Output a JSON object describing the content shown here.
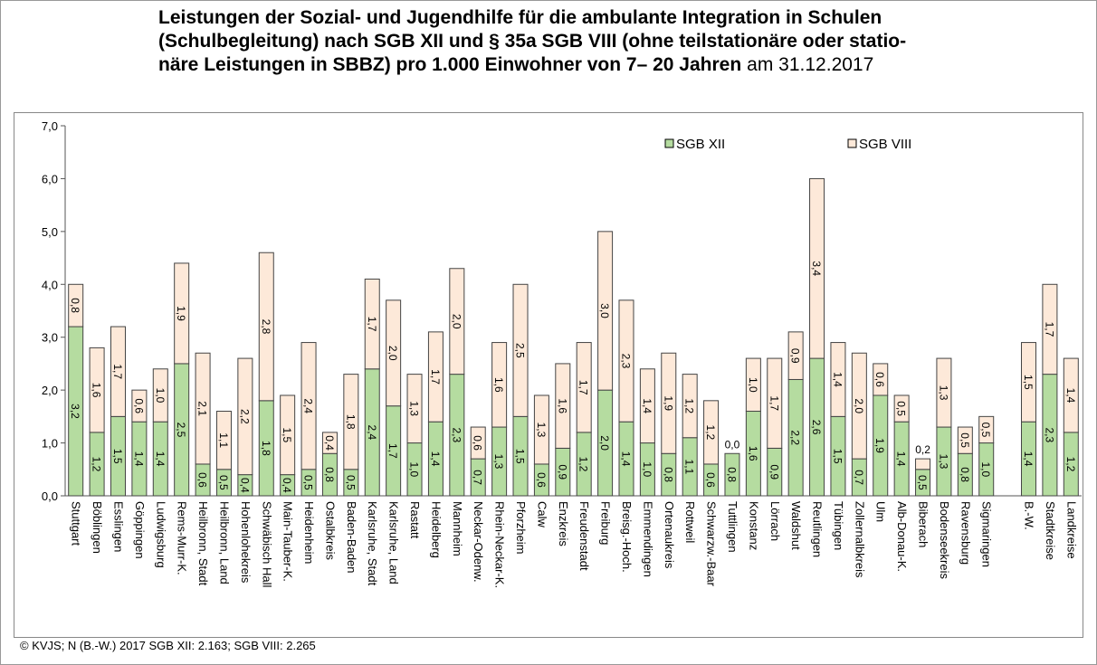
{
  "chart_data": {
    "type": "stacked_bar",
    "title": [
      "Leistungen der Sozial- und Jugendhilfe für die ambulante Integration in Schulen",
      "(Schulbegleitung) nach SGB XII und § 35a SGB VIII (ohne teilstationäre oder statio-",
      "näre Leistungen in SBBZ) pro 1.000 Einwohner von 7– 20 Jahren"
    ],
    "title_suffix": "am 31.12.2017",
    "footnote": "© KVJS; N (B.-W.) 2017 SGB XII: 2.163;  SGB VIII:  2.265",
    "categories": [
      "Stuttgart",
      "Böblingen",
      "Esslingen",
      "Göppingen",
      "Ludwigsburg",
      "Rems-Murr-K.",
      "Heilbronn, Stadt",
      "Heilbronn, Land",
      "Hohenlohekreis",
      "Schwäbisch Hall",
      "Main-Tauber-K.",
      "Heidenheim",
      "Ostalbkreis",
      "Baden-Baden",
      "Karlsruhe, Stadt",
      "Karlsruhe, Land",
      "Rastatt",
      "Heidelberg",
      "Mannheim",
      "Neckar-Odenw.",
      "Rhein-Neckar-K.",
      "Pforzheim",
      "Calw",
      "Enzkreis",
      "Freudenstadt",
      "Freiburg",
      "Breisg.-Hoch.",
      "Emmendingen",
      "Ortenaukreis",
      "Rottweil",
      "Schwarzw.-Baar",
      "Tuttlingen",
      "Konstanz",
      "Lörrach",
      "Waldshut",
      "Reutlingen",
      "Tübingen",
      "Zollernalbkreis",
      "Ulm",
      "Alb-Donau-K.",
      "Biberach",
      "Bodenseekreis",
      "Ravensburg",
      "Sigmaringen",
      null,
      "B.-W.",
      "Stadtkreise",
      "Landkreise"
    ],
    "series": [
      {
        "name": "SGB XII",
        "color": "#b5dca0",
        "values": [
          3.2,
          1.2,
          1.5,
          1.4,
          1.4,
          2.5,
          0.6,
          0.5,
          0.4,
          1.8,
          0.4,
          0.5,
          0.8,
          0.5,
          2.4,
          1.7,
          1.0,
          1.4,
          2.3,
          0.7,
          1.3,
          1.5,
          0.6,
          0.9,
          1.2,
          2.0,
          1.4,
          1.0,
          0.8,
          1.1,
          0.6,
          0.8,
          1.6,
          0.9,
          2.2,
          2.6,
          1.5,
          0.7,
          1.9,
          1.4,
          0.5,
          1.3,
          0.8,
          1.0,
          null,
          1.4,
          2.3,
          1.2
        ],
        "value_labels": [
          "3,2",
          "1,2",
          "1,5",
          "1,4",
          "1,4",
          "2,5",
          "0,6",
          "0,5",
          "0,4",
          "1,8",
          "0,4",
          "0,5",
          "0,8",
          "0,5",
          "2,4",
          "1,7",
          "1,0",
          "1,4",
          "2,3",
          "0,7",
          "1,3",
          "1,5",
          "0,6",
          "0,9",
          "1,2",
          "2,0",
          "1,4",
          "1,0",
          "0,8",
          "1,1",
          "0,6",
          "0,8",
          "1,6",
          "0,9",
          "2,2",
          "2,6",
          "1,5",
          "0,7",
          "1,9",
          "1,4",
          "0,5",
          "1,3",
          "0,8",
          "1,0",
          null,
          "1,4",
          "2,3",
          "1,2"
        ]
      },
      {
        "name": "SGB VIII",
        "color": "#fde9d9",
        "values": [
          0.8,
          1.6,
          1.7,
          0.6,
          1.0,
          1.9,
          2.1,
          1.1,
          2.2,
          2.8,
          1.5,
          2.4,
          0.4,
          1.8,
          1.7,
          2.0,
          1.3,
          1.7,
          2.0,
          0.6,
          1.6,
          2.5,
          1.3,
          1.6,
          1.7,
          3.0,
          2.3,
          1.4,
          1.9,
          1.2,
          1.2,
          0.0,
          1.0,
          1.7,
          0.9,
          3.4,
          1.4,
          2.0,
          0.6,
          0.5,
          0.2,
          1.3,
          0.5,
          0.5,
          null,
          1.5,
          1.7,
          1.4
        ],
        "value_labels": [
          "0,8",
          "1,6",
          "1,7",
          "0,6",
          "1,0",
          "1,9",
          "2,1",
          "1,1",
          "2,2",
          "2,8",
          "1,5",
          "2,4",
          "0,4",
          "1,8",
          "1,7",
          "2,0",
          "1,3",
          "1,7",
          "2,0",
          "0,6",
          "1,6",
          "2,5",
          "1,3",
          "1,6",
          "1,7",
          "3,0",
          "2,3",
          "1,4",
          "1,9",
          "1,2",
          "1,2",
          "0,0",
          "1,0",
          "1,7",
          "0,9",
          "3,4",
          "1,4",
          "2,0",
          "0,6",
          "0,5",
          "0,2",
          "1,3",
          "0,5",
          "0,5",
          null,
          "1,5",
          "1,7",
          "1,4"
        ]
      }
    ],
    "ylim": [
      0,
      7
    ],
    "yticks": [
      {
        "value": 0,
        "label": "0,0"
      },
      {
        "value": 1,
        "label": "1,0"
      },
      {
        "value": 2,
        "label": "2,0"
      },
      {
        "value": 3,
        "label": "3,0"
      },
      {
        "value": 4,
        "label": "4,0"
      },
      {
        "value": 5,
        "label": "5,0"
      },
      {
        "value": 6,
        "label": "6,0"
      },
      {
        "value": 7,
        "label": "7,0"
      }
    ],
    "grid": false,
    "legend": "top-right"
  }
}
